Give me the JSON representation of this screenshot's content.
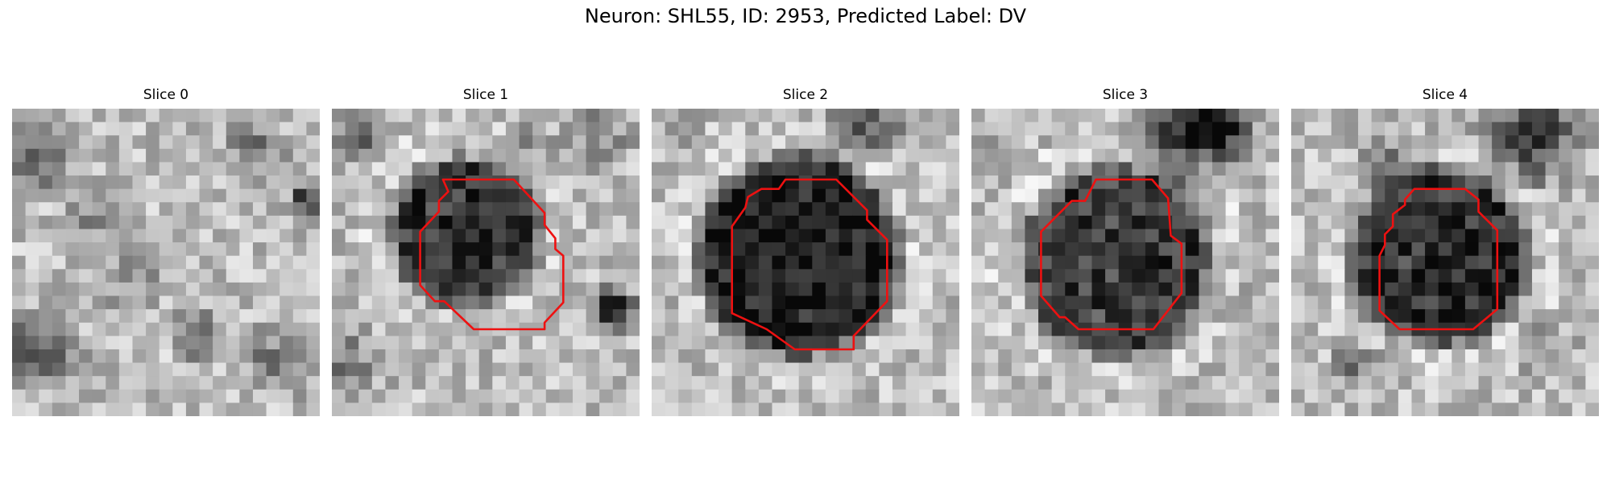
{
  "figure": {
    "suptitle": "Neuron: SHL55, ID: 2953, Predicted Label: DV"
  },
  "image_grid": {
    "rows": 23,
    "cols": 23,
    "description_colormap": "gray"
  },
  "colors": {
    "contour": "#ee1111",
    "background": "#ffffff"
  },
  "panels": [
    {
      "title": "Slice 0",
      "seed": 11,
      "blob": null,
      "contour": null,
      "dark_patches": [
        [
          2,
          4,
          2.2,
          0.28
        ],
        [
          18,
          3,
          2,
          0.22
        ],
        [
          2,
          18,
          2.5,
          0.3
        ],
        [
          20,
          19,
          2.2,
          0.25
        ],
        [
          14,
          17,
          1.6,
          0.35
        ],
        [
          22,
          7,
          0.9,
          0.6
        ],
        [
          9,
          12,
          2.5,
          0.15
        ],
        [
          6,
          8,
          1.5,
          0.2
        ]
      ]
    },
    {
      "title": "Slice 1",
      "seed": 23,
      "blob": {
        "cx": 10.0,
        "cy": 9.2,
        "r": 4.6,
        "depth": 0.55
      },
      "contour": [
        [
          8.3,
          5.3
        ],
        [
          13.6,
          5.3
        ],
        [
          15.9,
          7.8
        ],
        [
          15.9,
          8.7
        ],
        [
          16.7,
          9.7
        ],
        [
          16.7,
          10.5
        ],
        [
          17.3,
          11.0
        ],
        [
          17.3,
          14.5
        ],
        [
          15.9,
          16.0
        ],
        [
          15.9,
          16.5
        ],
        [
          10.6,
          16.5
        ],
        [
          8.4,
          14.4
        ],
        [
          7.7,
          14.4
        ],
        [
          6.6,
          13.2
        ],
        [
          6.6,
          9.2
        ],
        [
          8.0,
          7.7
        ],
        [
          8.0,
          6.9
        ],
        [
          8.7,
          6.2
        ]
      ],
      "dark_patches": [
        [
          2,
          2,
          1.8,
          0.3
        ],
        [
          21,
          15,
          1.5,
          0.5
        ],
        [
          20,
          2,
          2,
          0.2
        ],
        [
          1,
          19,
          2.5,
          0.2
        ],
        [
          15,
          3,
          1.5,
          0.2
        ]
      ]
    },
    {
      "title": "Slice 2",
      "seed": 37,
      "blob": {
        "cx": 11.0,
        "cy": 11.0,
        "r": 6.6,
        "depth": 0.62
      },
      "contour": [
        [
          10.0,
          5.3
        ],
        [
          13.8,
          5.3
        ],
        [
          16.1,
          7.6
        ],
        [
          16.1,
          8.3
        ],
        [
          17.6,
          9.8
        ],
        [
          17.6,
          14.4
        ],
        [
          15.1,
          17.0
        ],
        [
          15.1,
          18.0
        ],
        [
          10.7,
          18.0
        ],
        [
          8.6,
          16.5
        ],
        [
          6.0,
          15.3
        ],
        [
          6.0,
          8.8
        ],
        [
          7.0,
          7.4
        ],
        [
          7.2,
          6.6
        ],
        [
          8.2,
          6.0
        ],
        [
          9.5,
          6.0
        ]
      ],
      "dark_patches": [
        [
          16,
          1,
          2.2,
          0.35
        ],
        [
          2,
          2,
          1.5,
          0.15
        ]
      ]
    },
    {
      "title": "Slice 3",
      "seed": 51,
      "blob": {
        "cx": 10.8,
        "cy": 11.5,
        "r": 6.2,
        "depth": 0.5
      },
      "contour": [
        [
          9.3,
          5.3
        ],
        [
          13.5,
          5.3
        ],
        [
          14.7,
          6.7
        ],
        [
          14.9,
          9.5
        ],
        [
          15.7,
          10.1
        ],
        [
          15.7,
          13.8
        ],
        [
          13.6,
          16.5
        ],
        [
          8.0,
          16.5
        ],
        [
          7.0,
          15.6
        ],
        [
          6.6,
          15.6
        ],
        [
          5.2,
          14.0
        ],
        [
          5.2,
          9.2
        ],
        [
          7.5,
          6.9
        ],
        [
          8.5,
          6.9
        ]
      ],
      "dark_patches": [
        [
          16,
          2,
          3.2,
          0.45
        ],
        [
          19,
          1,
          2,
          0.35
        ],
        [
          1,
          2,
          1.2,
          0.15
        ],
        [
          20,
          15,
          1.5,
          0.15
        ]
      ]
    },
    {
      "title": "Slice 4",
      "seed": 67,
      "blob": {
        "cx": 11.0,
        "cy": 11.0,
        "r": 5.8,
        "depth": 0.55
      },
      "contour": [
        [
          10.0,
          6.0
        ],
        [
          13.0,
          6.0
        ],
        [
          14.0,
          6.8
        ],
        [
          14.0,
          7.7
        ],
        [
          15.4,
          9.1
        ],
        [
          15.4,
          15.0
        ],
        [
          13.6,
          16.5
        ],
        [
          8.1,
          16.5
        ],
        [
          6.6,
          15.1
        ],
        [
          6.6,
          11.0
        ],
        [
          7.0,
          10.2
        ],
        [
          7.0,
          9.4
        ],
        [
          7.6,
          8.8
        ],
        [
          7.6,
          7.9
        ],
        [
          8.5,
          7.2
        ],
        [
          8.5,
          6.8
        ],
        [
          9.2,
          6.0
        ]
      ],
      "dark_patches": [
        [
          18,
          2,
          3.0,
          0.45
        ],
        [
          7,
          4,
          1.6,
          0.3
        ],
        [
          5,
          19,
          1.5,
          0.25
        ],
        [
          19,
          18,
          1.8,
          0.15
        ]
      ]
    }
  ]
}
